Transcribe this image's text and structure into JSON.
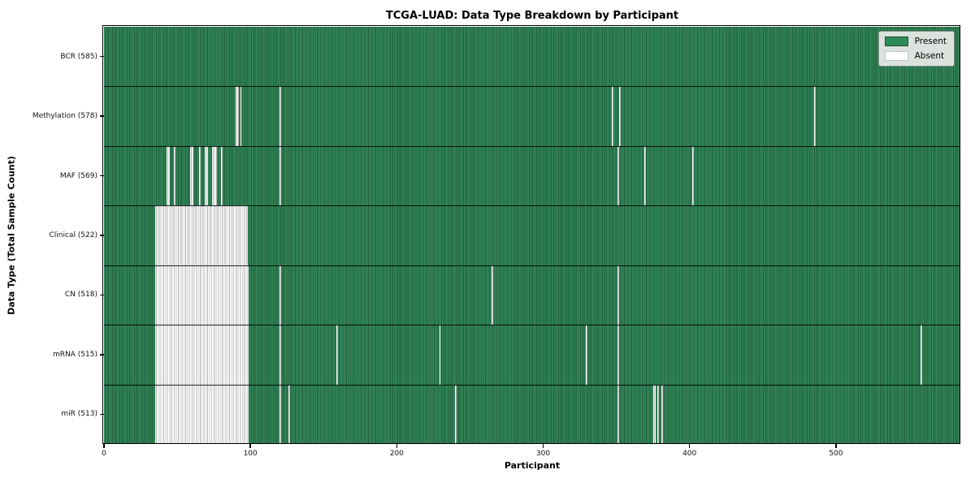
{
  "title": "TCGA-LUAD: Data Type Breakdown by Participant",
  "xlabel": "Participant",
  "ylabel": "Data Type (Total Sample Count)",
  "legend": {
    "present_label": "Present",
    "absent_label": "Absent"
  },
  "colors": {
    "present_green": "#2e8b57",
    "present_stripe_dark": "#1e5c3a",
    "absent_white": "#ffffff",
    "absent_stripe_gray": "#b3b3b3",
    "frame_black": "#000000",
    "legend_bg": "#e8ebe8"
  },
  "chart_data": {
    "type": "heatmap",
    "title": "TCGA-LUAD: Data Type Breakdown by Participant",
    "xlabel": "Participant",
    "ylabel": "Data Type (Total Sample Count)",
    "total_participants": 585,
    "x_ticks": [
      0,
      100,
      200,
      300,
      400,
      500
    ],
    "xlim": [
      0,
      585
    ],
    "grid": false,
    "legend_position": "upper right",
    "legend": [
      {
        "label": "Present",
        "color": "#2e8b57"
      },
      {
        "label": "Absent",
        "color": "#ffffff"
      }
    ],
    "rows": [
      {
        "name": "BCR",
        "label": "BCR (585)",
        "present_count": 585,
        "absent_count": 0,
        "absent_ranges": []
      },
      {
        "name": "Methylation",
        "label": "Methylation (578)",
        "present_count": 578,
        "absent_count": 7,
        "absent_ranges": [
          [
            90,
            1
          ],
          [
            91,
            1
          ],
          [
            93,
            1
          ],
          [
            120,
            1
          ],
          [
            347,
            1
          ],
          [
            352,
            1
          ],
          [
            485,
            1
          ]
        ]
      },
      {
        "name": "MAF",
        "label": "MAF (569)",
        "present_count": 569,
        "absent_count": 16,
        "absent_ranges": [
          [
            43,
            2
          ],
          [
            48,
            1
          ],
          [
            59,
            2
          ],
          [
            65,
            1
          ],
          [
            69,
            2
          ],
          [
            74,
            2
          ],
          [
            76,
            1
          ],
          [
            80,
            1
          ],
          [
            120,
            1
          ],
          [
            351,
            1
          ],
          [
            369,
            1
          ],
          [
            402,
            1
          ]
        ]
      },
      {
        "name": "Clinical",
        "label": "Clinical (522)",
        "present_count": 522,
        "absent_count": 63,
        "absent_ranges": [
          [
            35,
            63
          ]
        ]
      },
      {
        "name": "CN",
        "label": "CN (518)",
        "present_count": 518,
        "absent_count": 67,
        "absent_ranges": [
          [
            35,
            64
          ],
          [
            120,
            1
          ],
          [
            265,
            1
          ],
          [
            351,
            1
          ]
        ]
      },
      {
        "name": "mRNA",
        "label": "mRNA (515)",
        "present_count": 515,
        "absent_count": 70,
        "absent_ranges": [
          [
            35,
            64
          ],
          [
            120,
            1
          ],
          [
            159,
            1
          ],
          [
            229,
            1
          ],
          [
            329,
            1
          ],
          [
            351,
            1
          ],
          [
            558,
            1
          ]
        ]
      },
      {
        "name": "miR",
        "label": "miR (513)",
        "present_count": 513,
        "absent_count": 72,
        "absent_ranges": [
          [
            35,
            64
          ],
          [
            120,
            1
          ],
          [
            126,
            1
          ],
          [
            240,
            1
          ],
          [
            351,
            1
          ],
          [
            375,
            2
          ],
          [
            378,
            1
          ],
          [
            381,
            1
          ]
        ]
      }
    ]
  }
}
